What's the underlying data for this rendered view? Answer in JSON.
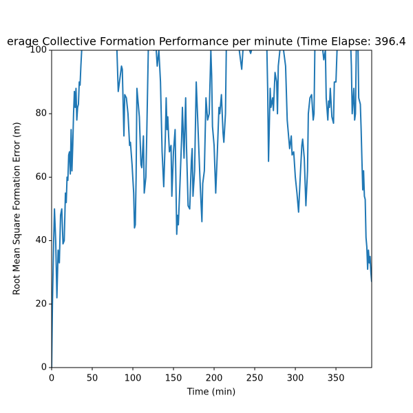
{
  "chart_data": {
    "type": "line",
    "title": "erage Collective Formation Performance per minute (Time Elapse: 396.4",
    "x_label": "Time (min)",
    "y_label": "Root Mean Square Formation Error (m)",
    "x": [
      0,
      1,
      2.5,
      3.5,
      5,
      6.5,
      8,
      9.5,
      11,
      12.5,
      14,
      15.5,
      17,
      18,
      19,
      20,
      21,
      22,
      23,
      24,
      25,
      26,
      27,
      28,
      29,
      30,
      31,
      32,
      33,
      34,
      35,
      36,
      37,
      39,
      45,
      60,
      75,
      80,
      82,
      84,
      86,
      87,
      89,
      90,
      92,
      94,
      96,
      97,
      99,
      101,
      102,
      103,
      104,
      105,
      106,
      108,
      110,
      111,
      113,
      114,
      116,
      117,
      119,
      120,
      124,
      126,
      128,
      130,
      132,
      134,
      136,
      138,
      140,
      141,
      142,
      143,
      144,
      145,
      147,
      148,
      150,
      152,
      154,
      155,
      156,
      158,
      160,
      161,
      163,
      164,
      165,
      166,
      168,
      170,
      172,
      173,
      174,
      176,
      178,
      180,
      181,
      183,
      185,
      186,
      188,
      190,
      192,
      194,
      196,
      197,
      198,
      200,
      202,
      204,
      206,
      207,
      209,
      211,
      212,
      214,
      215,
      217,
      230,
      232,
      234,
      236,
      240,
      245,
      248,
      255,
      262,
      265,
      266,
      267,
      269,
      270,
      272,
      273,
      275,
      277,
      278,
      279,
      281,
      284,
      288,
      290,
      292,
      293,
      295,
      296,
      298,
      300,
      302,
      304,
      306,
      308,
      309,
      311,
      313,
      315,
      316,
      318,
      320,
      322,
      323,
      324,
      326,
      328,
      331,
      333,
      335,
      337,
      338,
      340,
      341,
      342,
      343,
      345,
      347,
      348,
      350,
      352,
      360,
      368,
      369,
      370,
      372,
      373,
      374,
      375,
      377,
      378,
      380,
      381,
      382,
      383,
      384,
      385,
      386,
      387,
      388,
      389,
      390,
      391,
      392,
      393,
      394
    ],
    "series": [
      {
        "color": "#1f77b4",
        "values": [
          0,
          20,
          40,
          50,
          40,
          22,
          37,
          33,
          48,
          50,
          39,
          40,
          55,
          52,
          60,
          59,
          67,
          68,
          61,
          75,
          62,
          70,
          80,
          87,
          82,
          88,
          78,
          82,
          83,
          90,
          89,
          95,
          100,
          105,
          110,
          112,
          108,
          103,
          87,
          91,
          95,
          94,
          73,
          86,
          85,
          80,
          70,
          71,
          64,
          55,
          44,
          45,
          60,
          88,
          85,
          79,
          64,
          63,
          73,
          55,
          60,
          72,
          100,
          105,
          102,
          100,
          103,
          95,
          100,
          90,
          68,
          57,
          73,
          85,
          75,
          79,
          73,
          68,
          70,
          54,
          68,
          75,
          42,
          48,
          45,
          58,
          72,
          82,
          66,
          76,
          85,
          70,
          51,
          50,
          65,
          69,
          54,
          62,
          90,
          77,
          70,
          57,
          46,
          58,
          62,
          85,
          78,
          80,
          100,
          92,
          76,
          70,
          55,
          68,
          82,
          80,
          86,
          74,
          71,
          80,
          100,
          105,
          102,
          98,
          94,
          102,
          103,
          99,
          102,
          105,
          104,
          100,
          87,
          65,
          88,
          82,
          85,
          81,
          93,
          90,
          80,
          95,
          100,
          103,
          95,
          78,
          72,
          69,
          73,
          67,
          68,
          60,
          55,
          49,
          60,
          70,
          72,
          66,
          51,
          62,
          80,
          85,
          86,
          78,
          80,
          100,
          105,
          103,
          100,
          102,
          97,
          100,
          85,
          78,
          84,
          82,
          88,
          79,
          77,
          90,
          90,
          105,
          106,
          103,
          95,
          80,
          88,
          78,
          80,
          100,
          104,
          85,
          83,
          75,
          65,
          56,
          62,
          54,
          53,
          41,
          38,
          31,
          37,
          33,
          35,
          30,
          27
        ]
      }
    ],
    "xlim": [
      0,
      394
    ],
    "ylim": [
      0,
      100
    ],
    "xticks": [
      0,
      50,
      100,
      150,
      200,
      250,
      300,
      350
    ],
    "yticks": [
      0,
      20,
      40,
      60,
      80,
      100
    ]
  }
}
